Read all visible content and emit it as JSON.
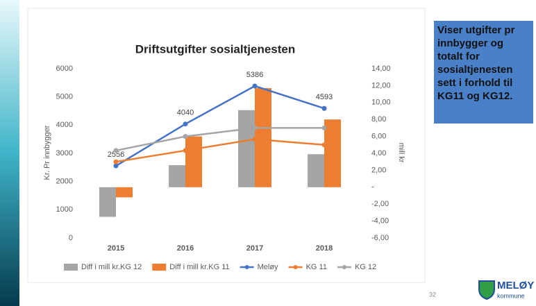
{
  "chart_data": {
    "type": "bar_line",
    "title": "Driftsutgifter sosialtjenesten",
    "ylabel": "Kr. Pr innbygger",
    "y2label": "mill kr",
    "categories": [
      "2015",
      "2016",
      "2017",
      "2018"
    ],
    "ylim": [
      0,
      6000
    ],
    "yticks": [
      0,
      1000,
      2000,
      3000,
      4000,
      5000,
      6000
    ],
    "y2lim": [
      -6,
      14
    ],
    "y2ticks": [
      {
        "value": 14,
        "label": "14,00"
      },
      {
        "value": 12,
        "label": "12,00"
      },
      {
        "value": 10,
        "label": "10,00"
      },
      {
        "value": 8,
        "label": "8,00"
      },
      {
        "value": 6,
        "label": "6,00"
      },
      {
        "value": 4,
        "label": "4,00"
      },
      {
        "value": 2,
        "label": "2,00"
      },
      {
        "value": 0,
        "label": "-"
      },
      {
        "value": -2,
        "label": "-2,00"
      },
      {
        "value": -4,
        "label": "-4,00"
      },
      {
        "value": -6,
        "label": "-6,00"
      }
    ],
    "grid": false,
    "legend": "bottom",
    "series": [
      {
        "name": "Diff i mill kr.KG 12",
        "type": "bar",
        "axis": "y2",
        "color": "#a5a5a5",
        "values": [
          -3.5,
          2.6,
          9.1,
          3.9
        ]
      },
      {
        "name": "Diff i mill kr.KG 11",
        "type": "bar",
        "axis": "y2",
        "color": "#ed7d31",
        "values": [
          -1.2,
          6.0,
          11.7,
          8.0
        ]
      },
      {
        "name": "Meløy",
        "type": "line",
        "axis": "y",
        "color": "#4472c4",
        "values": [
          2556,
          4040,
          5386,
          4593
        ],
        "show_labels": true
      },
      {
        "name": "KG 11",
        "type": "line",
        "axis": "y",
        "color": "#ed7d31",
        "values": [
          2700,
          3100,
          3500,
          3300
        ]
      },
      {
        "name": "KG 12",
        "type": "line",
        "axis": "y",
        "color": "#a5a5a5",
        "values": [
          3100,
          3600,
          3900,
          3900
        ]
      }
    ]
  },
  "side_text": "Viser utgifter pr innbygger og totalt for sosialtjenesten sett i forhold til KG11 og KG12.",
  "page_number": "32",
  "logo": {
    "name": "MELØY",
    "subtitle": "kommune"
  }
}
